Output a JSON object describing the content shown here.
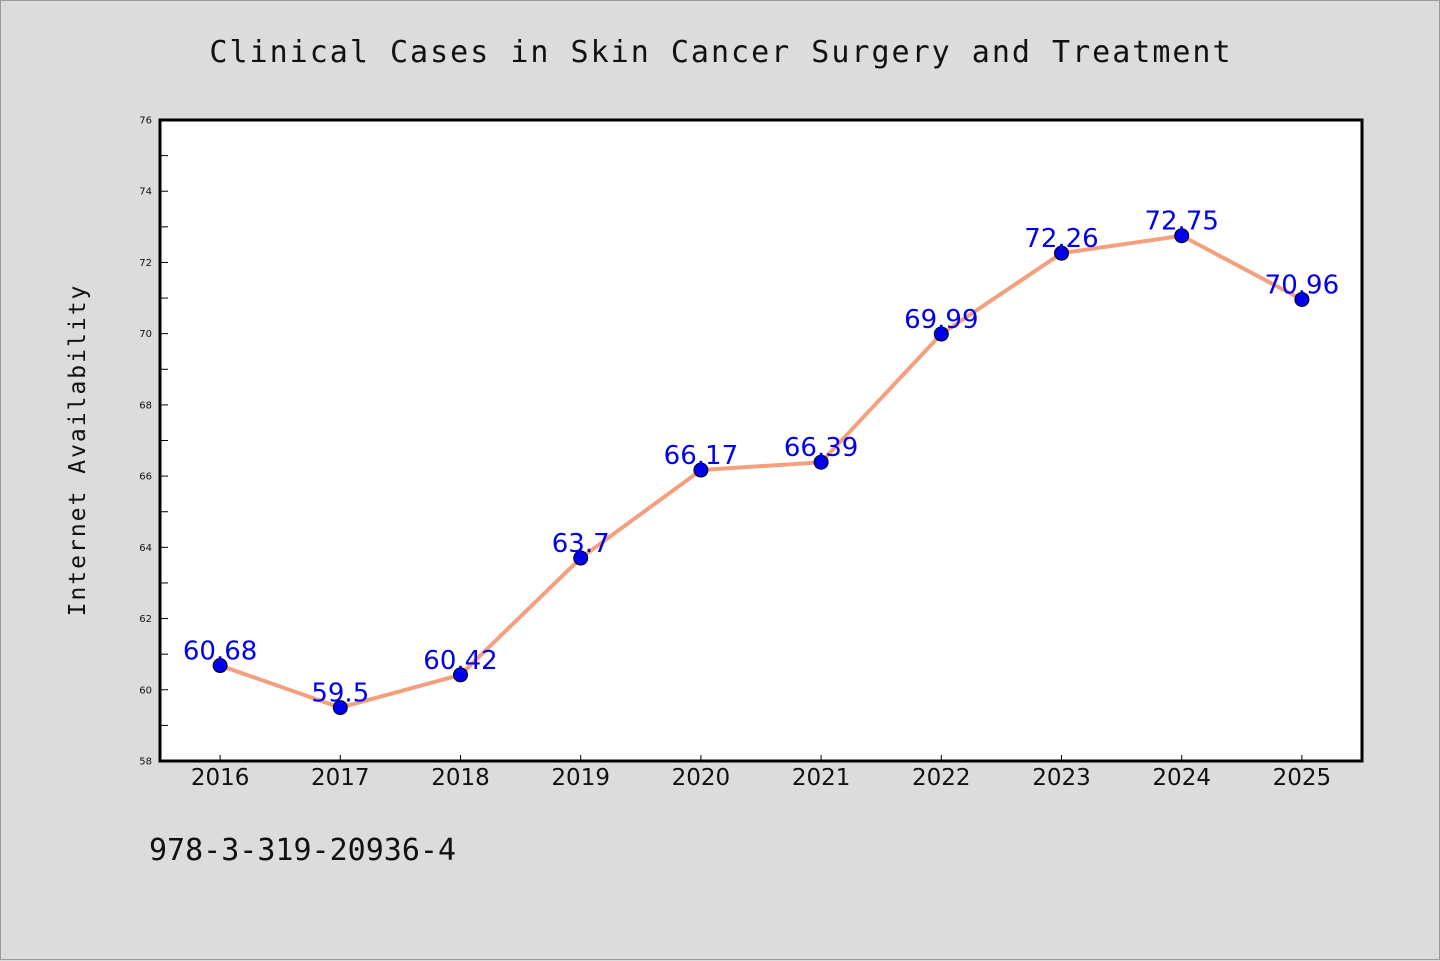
{
  "chart_data": {
    "type": "line",
    "title": "Clinical Cases in Skin Cancer Surgery and Treatment",
    "xlabel": "",
    "ylabel": "Internet Availability",
    "categories": [
      "2016",
      "2017",
      "2018",
      "2019",
      "2020",
      "2021",
      "2022",
      "2023",
      "2024",
      "2025"
    ],
    "series": [
      {
        "values": [
          60.68,
          59.5,
          60.42,
          63.7,
          66.17,
          66.39,
          69.99,
          72.26,
          72.75,
          70.96
        ],
        "labels": [
          "60.68",
          "59.5",
          "60.42",
          "63.7",
          "66.17",
          "66.39",
          "69.99",
          "72.26",
          "72.75",
          "70.96"
        ]
      }
    ],
    "ylim": [
      58,
      76
    ],
    "yticks": [
      "58",
      "60",
      "62",
      "64",
      "66",
      "68",
      "70",
      "72",
      "74",
      "76"
    ],
    "grid": false,
    "legend": "none",
    "colors": {
      "line": "#f4a07e",
      "marker": "#0000ee",
      "label": "#0000ee",
      "plot_bg": "#ffffff",
      "figure_bg": "#dcdcdc"
    }
  },
  "footer": {
    "code": "978-3-319-20936-4"
  }
}
